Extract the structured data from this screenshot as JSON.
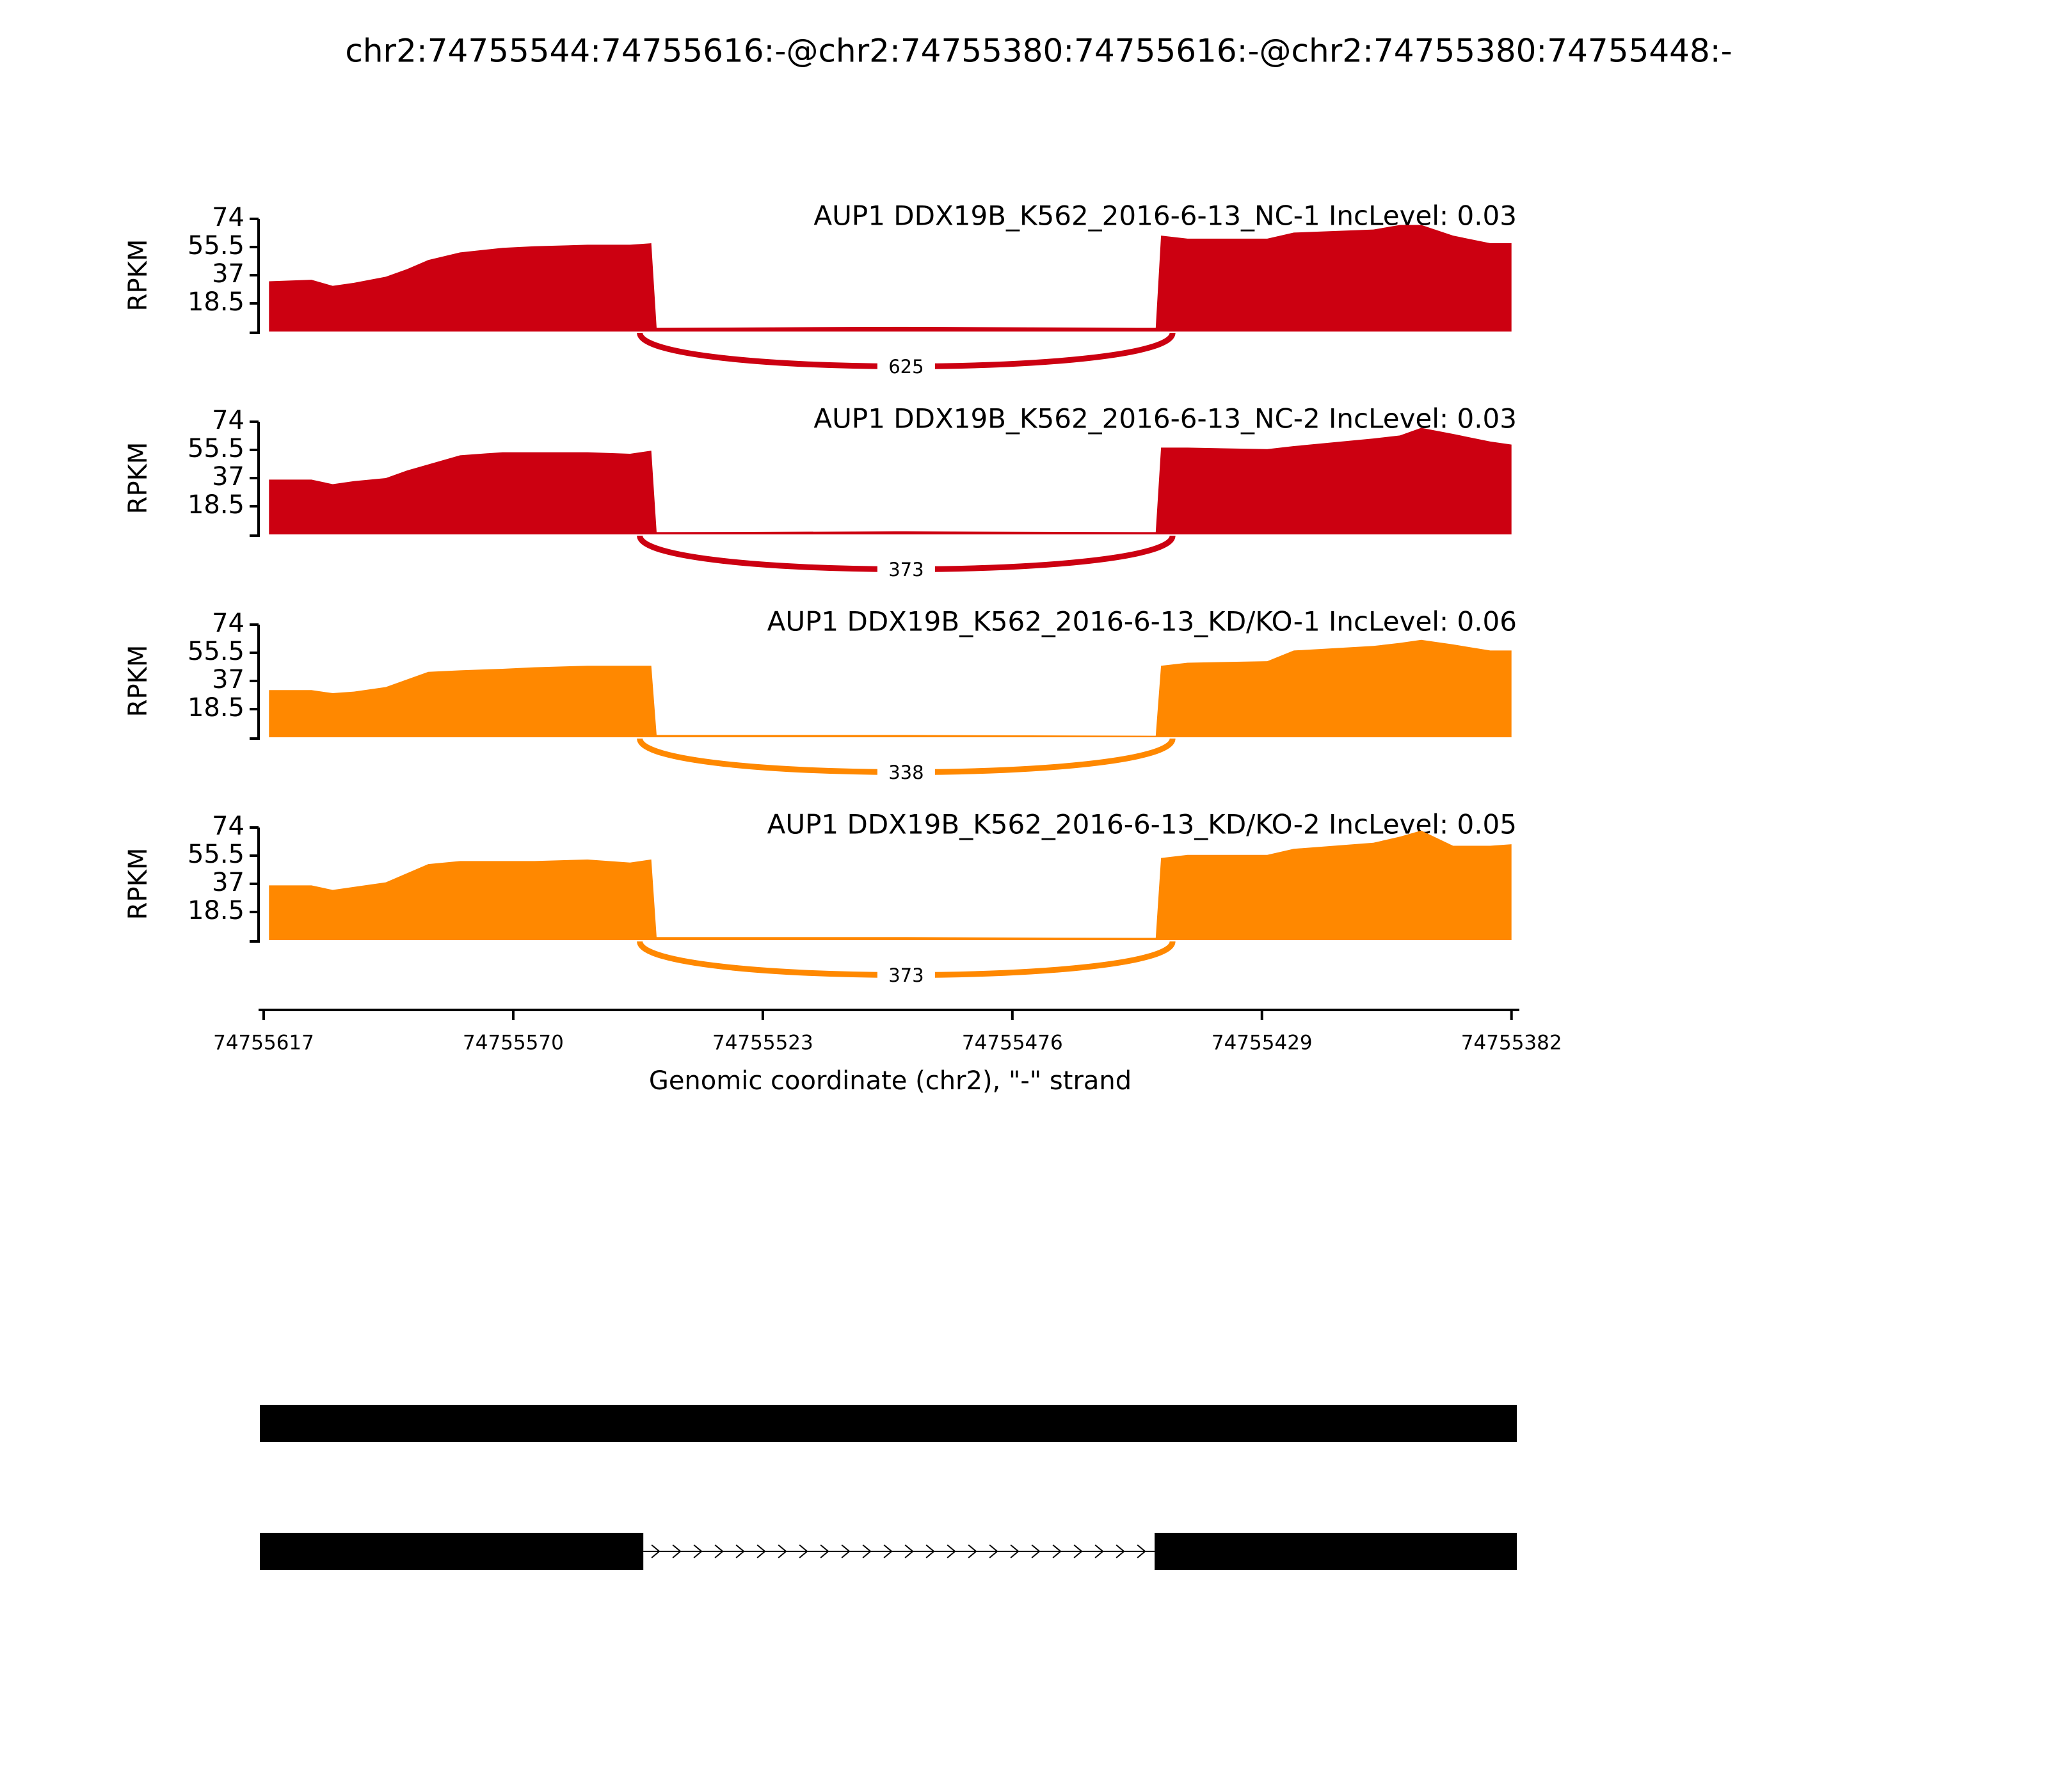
{
  "title": "chr2:74755544:74755616:-@chr2:74755380:74755616:-@chr2:74755380:74755448:-",
  "chart_data": [
    {
      "type": "area",
      "title": "AUP1 DDX19B_K562_2016-6-13_NC-1 IncLevel: 0.03",
      "color": "#cc0011",
      "ylabel": "RPKM",
      "x": [
        74755616,
        74755608,
        74755604,
        74755600,
        74755594,
        74755590,
        74755586,
        74755580,
        74755572,
        74755566,
        74755556,
        74755548,
        74755544,
        74755543,
        74755496,
        74755449,
        74755448,
        74755443,
        74755428,
        74755423,
        74755408,
        74755403,
        74755399,
        74755393,
        74755386,
        74755382
      ],
      "values": [
        33,
        34,
        30,
        32,
        36,
        41,
        47,
        52,
        55,
        56,
        57,
        57,
        58,
        2.5,
        3,
        2.5,
        63,
        61,
        61,
        65,
        67,
        70,
        70,
        63,
        58,
        58
      ],
      "xlim": [
        74755617,
        74755381
      ],
      "ylim": [
        0,
        74
      ],
      "yticks": [
        18.5,
        37,
        55.5,
        74
      ],
      "junction": {
        "x": [
          74755544,
          74755448
        ],
        "count": 625
      }
    },
    {
      "type": "area",
      "title": "AUP1 DDX19B_K562_2016-6-13_NC-2 IncLevel: 0.03",
      "color": "#cc0011",
      "ylabel": "RPKM",
      "x": [
        74755616,
        74755608,
        74755604,
        74755600,
        74755594,
        74755590,
        74755586,
        74755580,
        74755572,
        74755566,
        74755556,
        74755548,
        74755544,
        74755543,
        74755496,
        74755449,
        74755448,
        74755443,
        74755428,
        74755423,
        74755408,
        74755403,
        74755399,
        74755393,
        74755386,
        74755382
      ],
      "values": [
        36,
        36,
        33,
        35,
        37,
        42,
        46,
        52,
        54,
        54,
        54,
        53,
        55,
        1.5,
        2,
        1.5,
        57,
        57,
        56,
        58,
        63,
        65,
        70,
        66,
        61,
        59
      ],
      "xlim": [
        74755617,
        74755381
      ],
      "ylim": [
        0,
        74
      ],
      "yticks": [
        18.5,
        37,
        55.5,
        74
      ],
      "junction": {
        "x": [
          74755544,
          74755448
        ],
        "count": 373
      }
    },
    {
      "type": "area",
      "title": "AUP1 DDX19B_K562_2016-6-13_KD/KO-1 IncLevel: 0.06",
      "color": "#ff8800",
      "ylabel": "RPKM",
      "x": [
        74755616,
        74755608,
        74755604,
        74755600,
        74755594,
        74755590,
        74755586,
        74755580,
        74755572,
        74755566,
        74755556,
        74755548,
        74755544,
        74755543,
        74755496,
        74755449,
        74755448,
        74755443,
        74755428,
        74755423,
        74755408,
        74755403,
        74755399,
        74755393,
        74755386,
        74755382
      ],
      "values": [
        31,
        31,
        29,
        30,
        33,
        38,
        43,
        44,
        45,
        46,
        47,
        47,
        47,
        1.5,
        1.5,
        1,
        47,
        49,
        50,
        57,
        60,
        62,
        64,
        61,
        57,
        57
      ],
      "xlim": [
        74755617,
        74755381
      ],
      "ylim": [
        0,
        74
      ],
      "yticks": [
        18.5,
        37,
        55.5,
        74
      ],
      "junction": {
        "x": [
          74755544,
          74755448
        ],
        "count": 338
      }
    },
    {
      "type": "area",
      "title": "AUP1 DDX19B_K562_2016-6-13_KD/KO-2 IncLevel: 0.05",
      "color": "#ff8800",
      "ylabel": "RPKM",
      "x": [
        74755616,
        74755608,
        74755604,
        74755600,
        74755594,
        74755590,
        74755586,
        74755580,
        74755572,
        74755566,
        74755556,
        74755548,
        74755544,
        74755543,
        74755496,
        74755449,
        74755448,
        74755443,
        74755428,
        74755423,
        74755408,
        74755403,
        74755399,
        74755393,
        74755386,
        74755382
      ],
      "values": [
        36,
        36,
        33,
        35,
        38,
        44,
        50,
        52,
        52,
        52,
        53,
        51,
        53,
        2,
        2,
        1.5,
        54,
        56,
        56,
        60,
        64,
        68,
        72,
        62,
        62,
        63
      ],
      "xlim": [
        74755617,
        74755381
      ],
      "ylim": [
        0,
        74
      ],
      "yticks": [
        18.5,
        37,
        55.5,
        74
      ],
      "junction": {
        "x": [
          74755544,
          74755448
        ],
        "count": 373
      },
      "xticks": [
        74755617,
        74755570,
        74755523,
        74755476,
        74755429,
        74755382
      ],
      "xlabel": "Genomic coordinate (chr2), \"-\" strand"
    },
    {
      "type": "gene",
      "xlim": [
        74755617,
        74755381
      ],
      "transcripts": [
        {
          "exons": [
            [
              74755617,
              74755381
            ]
          ]
        },
        {
          "exons": [
            [
              74755617,
              74755545
            ],
            [
              74755449,
              74755381
            ]
          ]
        }
      ]
    }
  ]
}
